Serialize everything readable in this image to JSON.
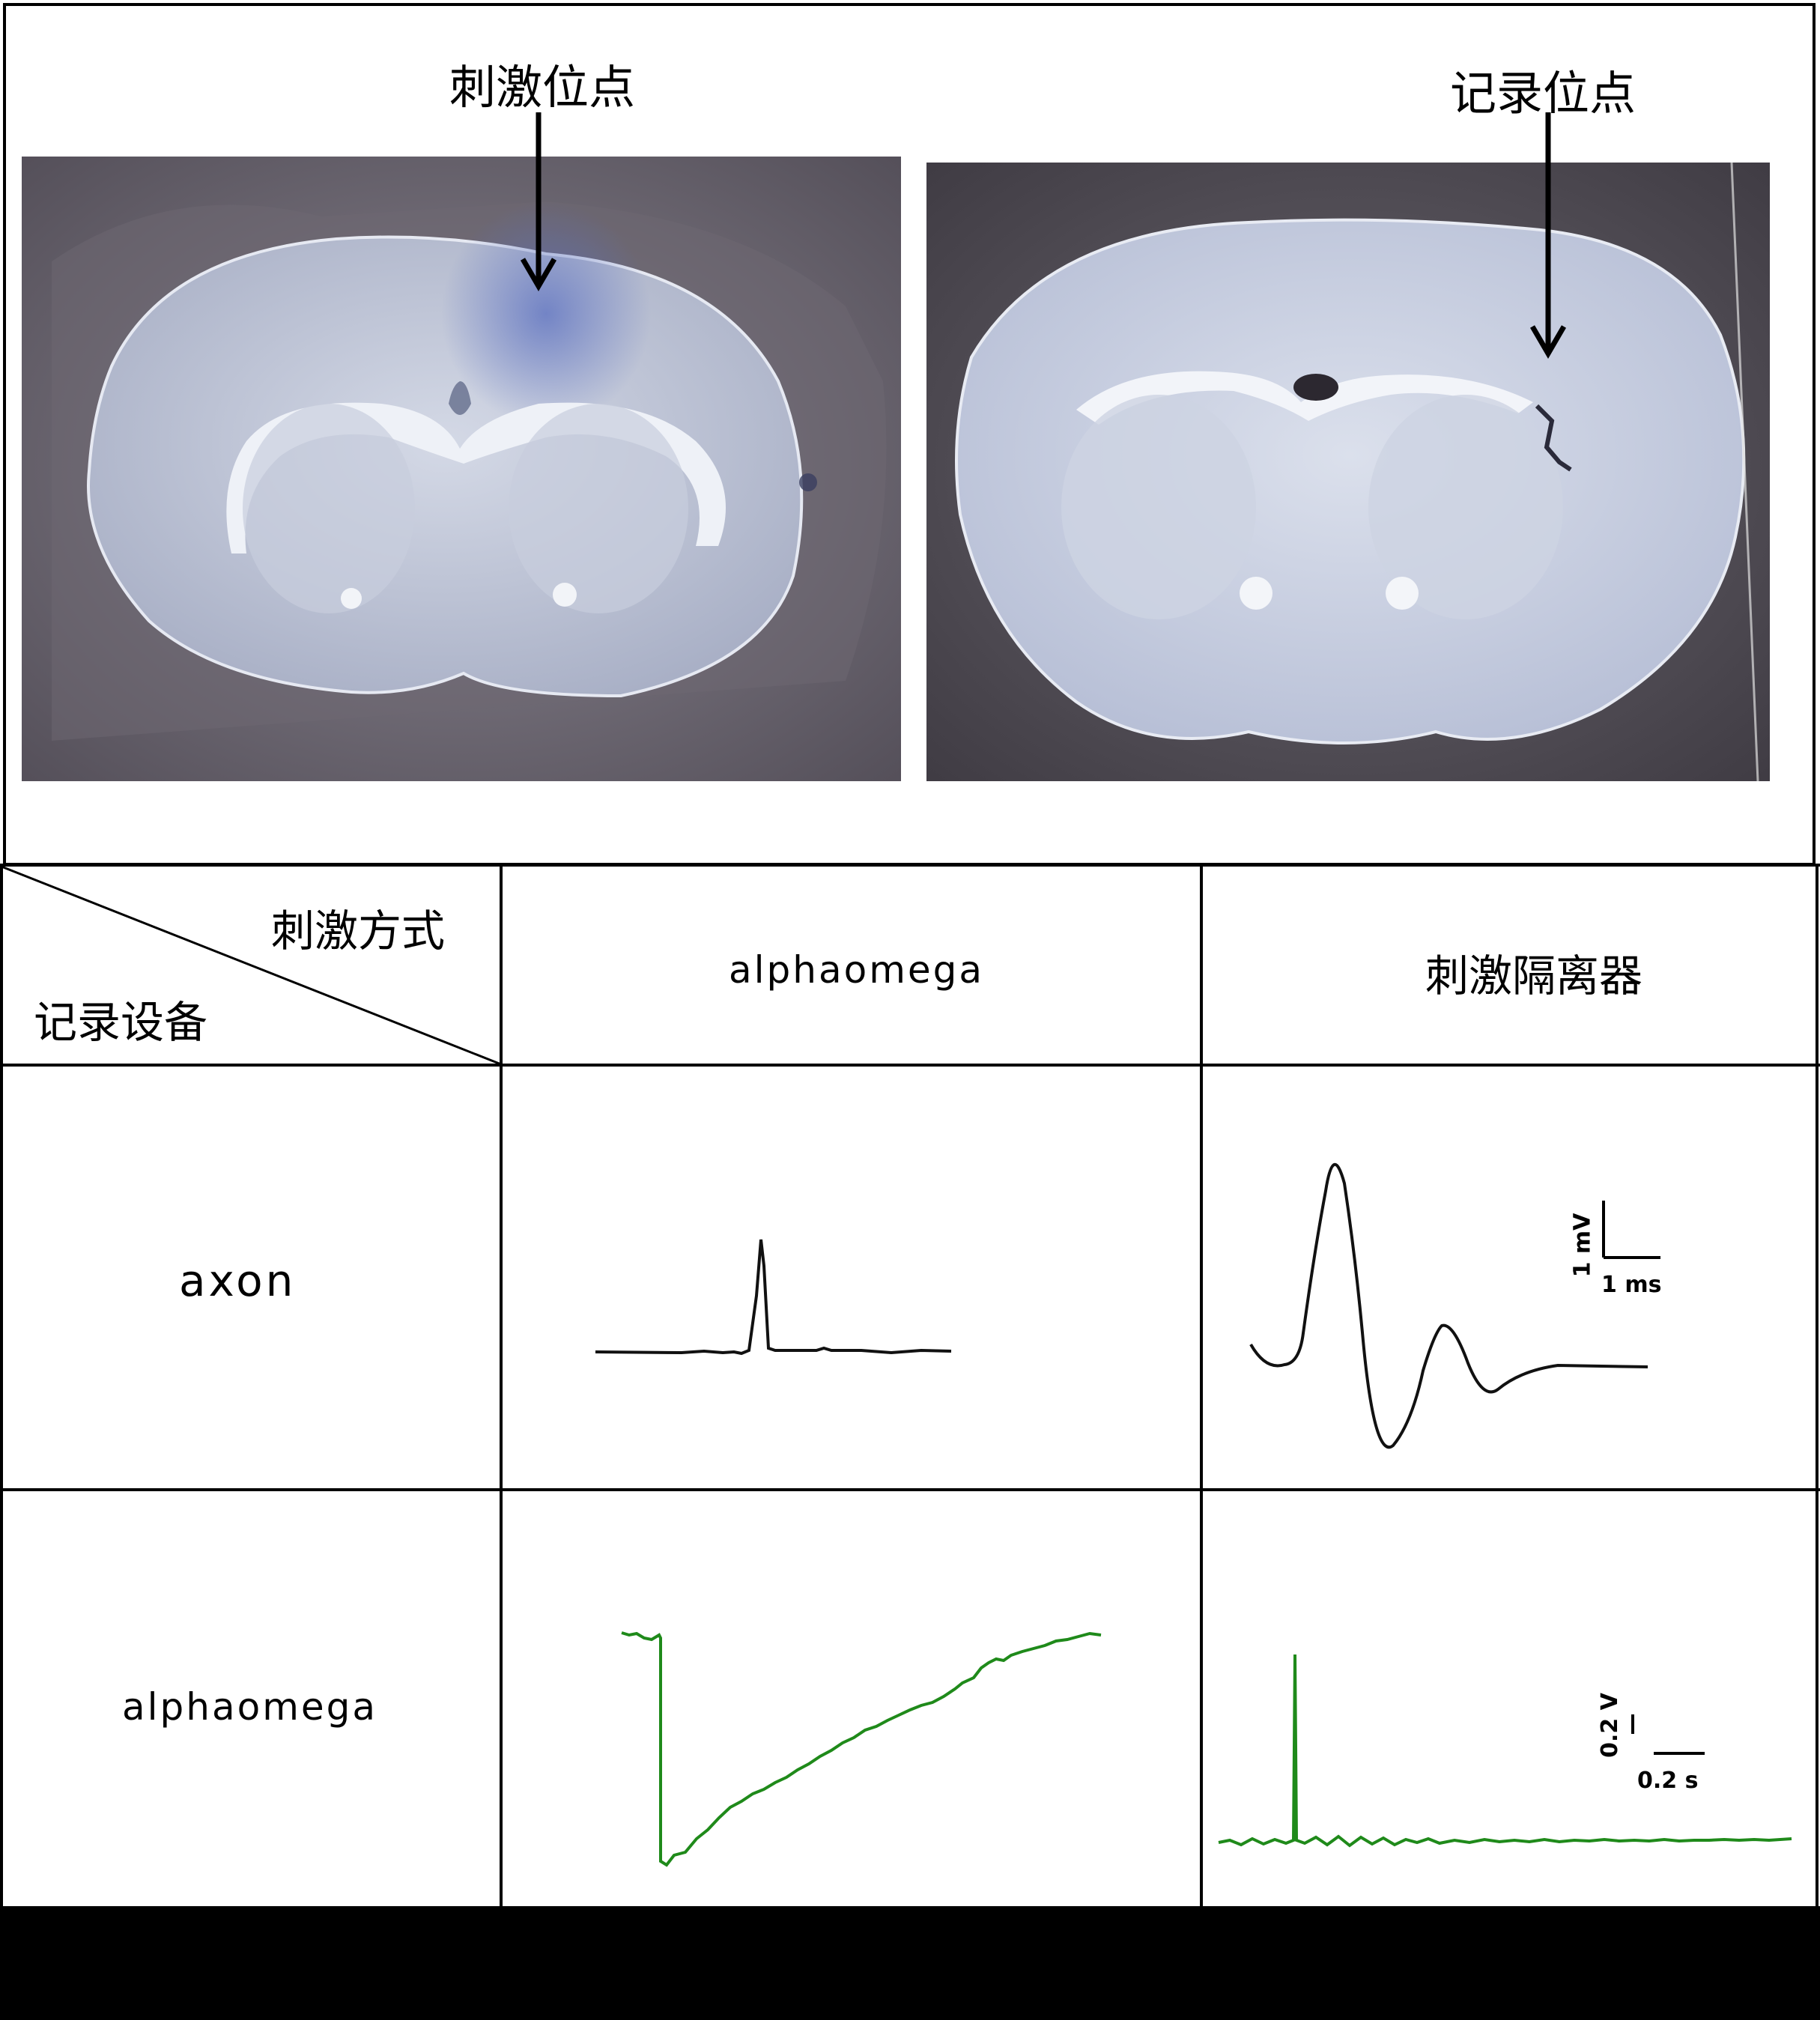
{
  "photos": {
    "stimulation_site_label": "刺激位点",
    "recording_site_label": "记录位点"
  },
  "table": {
    "header_corner": {
      "stimulation_method": "刺激方式",
      "recording_device": "记录设备"
    },
    "columns": [
      "alphaomega",
      "刺激隔离器"
    ],
    "rows": [
      {
        "label": "axon"
      },
      {
        "label": "alphaomega"
      }
    ]
  },
  "scale_bars": {
    "axon_isolator": {
      "vertical": "1 mV",
      "horizontal": "1 ms"
    },
    "alphaomega_isolator": {
      "vertical": "0.2 V",
      "horizontal": "0.2 s"
    }
  },
  "colors": {
    "black_trace": "#111111",
    "green_trace": "#1f8a1a",
    "tissue_blue": "#b9c3de",
    "background": "#ffffff"
  }
}
